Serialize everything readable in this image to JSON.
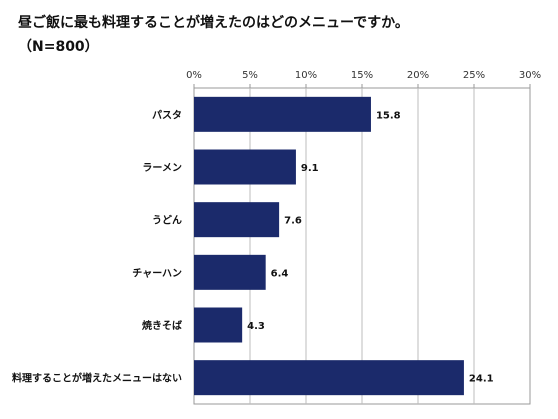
{
  "chart_data": {
    "type": "bar",
    "orientation": "horizontal",
    "title": "昼ご飯に最も料理することが増えたのはどのメニューですか。",
    "subtitle": "（N=800）",
    "categories": [
      "パスタ",
      "ラーメン",
      "うどん",
      "チャーハン",
      "焼きそば",
      "料理することが増えたメニューはない"
    ],
    "values": [
      15.8,
      9.1,
      7.6,
      6.4,
      4.3,
      24.1
    ],
    "value_labels": [
      "15.8",
      "9.1",
      "7.6",
      "6.4",
      "4.3",
      "24.1"
    ],
    "xlim": [
      0,
      30
    ],
    "ticks": [
      0,
      5,
      10,
      15,
      20,
      25,
      30
    ],
    "tick_labels": [
      "0%",
      "5%",
      "10%",
      "15%",
      "20%",
      "25%",
      "30%"
    ],
    "axis_position": "top",
    "grid": true,
    "bar_color": "#1b2a6b",
    "xlabel": "",
    "ylabel": ""
  }
}
